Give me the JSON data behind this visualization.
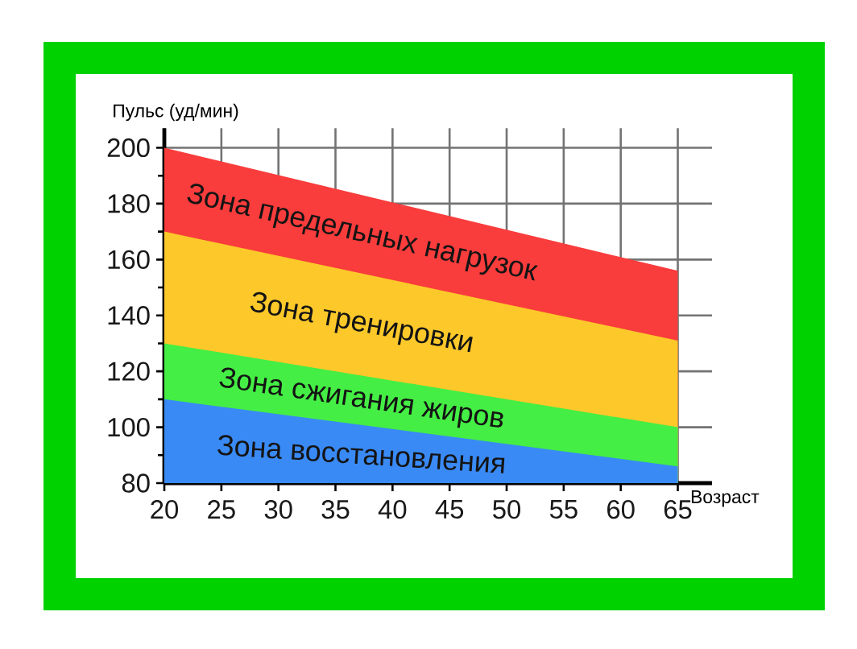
{
  "chart_data": {
    "type": "area",
    "xlabel": "Возраст",
    "ylabel": "Пульс (уд/мин)",
    "x": [
      20,
      65
    ],
    "xlim": [
      20,
      68
    ],
    "ylim": [
      80,
      207
    ],
    "xticks": [
      20,
      25,
      30,
      35,
      40,
      45,
      50,
      55,
      60,
      65
    ],
    "yticks": [
      80,
      100,
      120,
      140,
      160,
      180,
      200
    ],
    "grid": true,
    "series": [
      {
        "name": "Зона предельных нагрузок",
        "color": "#f93c3c",
        "values": [
          200,
          156
        ]
      },
      {
        "name": "Зона тренировки",
        "color": "#fdc82a",
        "values": [
          170,
          131
        ]
      },
      {
        "name": "Зона сжигания жиров",
        "color": "#44ee44",
        "values": [
          130,
          100
        ]
      },
      {
        "name": "Зона восстановления",
        "color": "#3a8af5",
        "values": [
          110,
          86
        ]
      }
    ]
  }
}
